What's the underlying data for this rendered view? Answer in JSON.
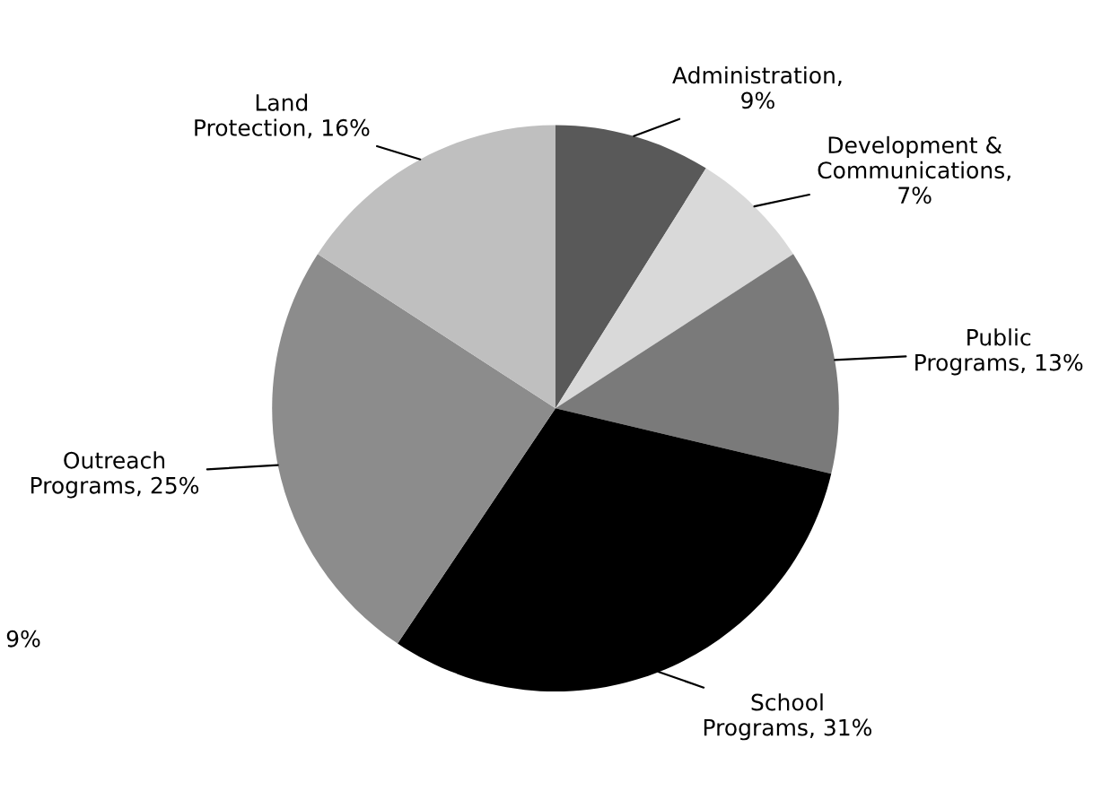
{
  "chart_data": {
    "type": "pie",
    "categories": [
      "Administration,\n9%",
      "Development &\nCommunications,\n7%",
      "Public\nPrograms, 13%",
      "School\nPrograms, 31%",
      "Outreach\nPrograms, 25%",
      "Land\nProtection, 16%"
    ],
    "values": [
      9,
      7,
      13,
      31,
      25,
      16
    ],
    "colors": [
      "#595959",
      "#d9d9d9",
      "#7a7a7a",
      "#000000",
      "#8c8c8c",
      "#bfbfbf"
    ],
    "annotations": [
      "9%"
    ]
  }
}
